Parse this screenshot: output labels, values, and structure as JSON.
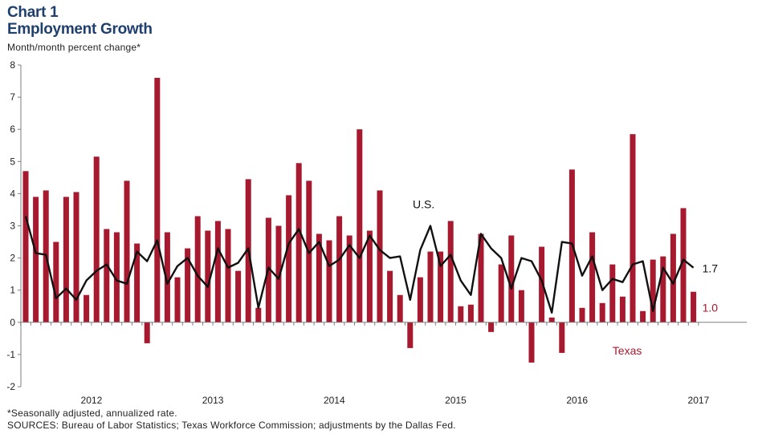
{
  "header": {
    "chart_number": "Chart 1",
    "title": "Employment Growth",
    "subtitle": "Month/month percent change*"
  },
  "footnotes": {
    "note": "*Seasonally adjusted, annualized rate.",
    "sources": "SOURCES: Bureau of Labor Statistics; Texas Workforce Commission; adjustments by the Dallas Fed."
  },
  "colors": {
    "texas": "#a6192e",
    "us": "#111111",
    "axis": "#7f7f7f"
  },
  "chart_data": {
    "type": "bar",
    "ylim": [
      -2,
      8
    ],
    "yticks": [
      -2,
      -1,
      0,
      1,
      2,
      3,
      4,
      5,
      6,
      7,
      8
    ],
    "year_labels": [
      "2012",
      "2013",
      "2014",
      "2015",
      "2016",
      "2017"
    ],
    "year_positions": [
      6.5,
      18.5,
      30.5,
      42.5,
      54.5,
      66.5
    ],
    "grid": false,
    "series": [
      {
        "name": "Texas",
        "type": "bar",
        "end_label": "1.0",
        "values": [
          4.7,
          3.9,
          4.1,
          2.5,
          3.9,
          4.05,
          0.85,
          5.15,
          2.9,
          2.8,
          4.4,
          2.45,
          -0.65,
          7.6,
          2.8,
          1.4,
          2.3,
          3.3,
          2.85,
          3.15,
          2.9,
          1.6,
          4.45,
          0.45,
          3.25,
          3.0,
          3.95,
          4.95,
          4.4,
          2.75,
          2.55,
          3.3,
          2.7,
          6.0,
          2.85,
          4.1,
          1.6,
          0.85,
          -0.8,
          1.4,
          2.2,
          2.2,
          3.15,
          0.5,
          0.55,
          2.75,
          -0.3,
          1.8,
          2.7,
          1.0,
          -1.25,
          2.35,
          0.15,
          -0.95,
          4.75,
          0.45,
          2.8,
          0.6,
          1.8,
          0.8,
          5.85,
          0.35,
          1.95,
          2.05,
          2.75,
          3.55,
          0.95
        ]
      },
      {
        "name": "U.S.",
        "type": "line",
        "end_label": "1.7",
        "values": [
          3.3,
          2.15,
          2.1,
          0.75,
          1.05,
          0.7,
          1.3,
          1.6,
          1.8,
          1.3,
          1.2,
          2.2,
          1.9,
          2.55,
          1.2,
          1.75,
          2.0,
          1.45,
          1.1,
          2.3,
          1.7,
          1.85,
          2.3,
          0.45,
          1.7,
          1.35,
          2.45,
          2.9,
          2.15,
          2.5,
          1.75,
          1.95,
          2.4,
          2.0,
          2.7,
          2.25,
          2.0,
          2.05,
          0.7,
          2.25,
          3.0,
          1.75,
          2.1,
          1.3,
          0.85,
          2.75,
          2.3,
          2.0,
          1.05,
          2.0,
          1.9,
          1.3,
          0.3,
          2.5,
          2.45,
          1.45,
          2.05,
          1.0,
          1.35,
          1.25,
          1.8,
          1.9,
          0.35,
          1.7,
          1.2,
          1.95,
          1.7
        ]
      }
    ],
    "annotations": [
      {
        "text": "U.S.",
        "series": "U.S.",
        "near_index": 40
      },
      {
        "text": "Texas",
        "series": "Texas",
        "near_index": 58
      }
    ]
  }
}
